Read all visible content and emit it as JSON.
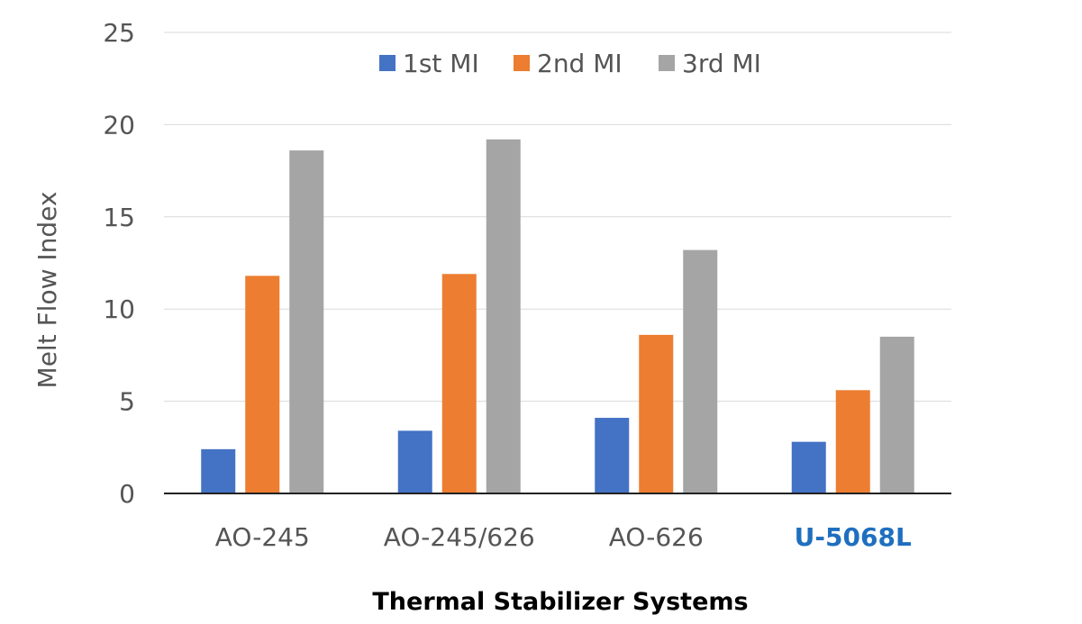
{
  "chart_data": {
    "type": "bar",
    "title": "",
    "xlabel": "Thermal Stabilizer Systems",
    "ylabel": "Melt Flow Index",
    "ylim": [
      0,
      25
    ],
    "yticks": [
      "0",
      "5",
      "10",
      "15",
      "20",
      "25"
    ],
    "grid": true,
    "legend_position": "top-center",
    "categories": [
      "AO-245",
      "AO-245/626",
      "AO-626",
      "U-5068L"
    ],
    "highlight_category": "U-5068L",
    "highlight_color": "#1f6fbf",
    "series": [
      {
        "name": "1st MI",
        "color": "#4472c4",
        "values": [
          2.4,
          3.4,
          4.1,
          2.8
        ]
      },
      {
        "name": "2nd MI",
        "color": "#ed7d31",
        "values": [
          11.8,
          11.9,
          8.6,
          5.6
        ]
      },
      {
        "name": "3rd MI",
        "color": "#a5a5a5",
        "values": [
          18.6,
          19.2,
          13.2,
          8.5
        ]
      }
    ]
  }
}
